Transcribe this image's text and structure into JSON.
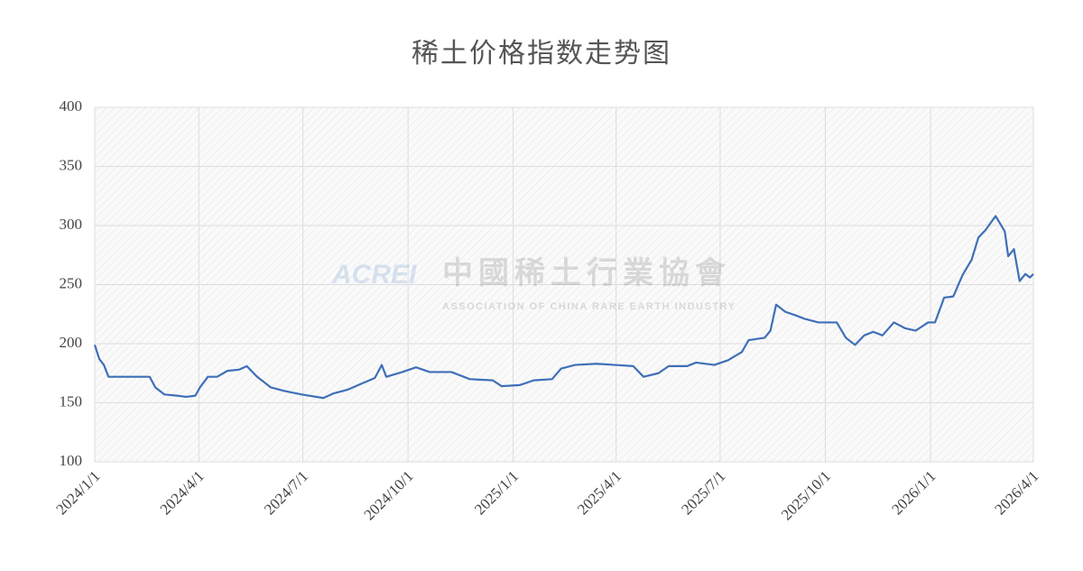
{
  "chart_data": {
    "type": "line",
    "title": "稀土价格指数走势图",
    "watermark": {
      "logo": "ACREI",
      "name": "中國稀土行業協會",
      "english": "ASSOCIATION OF CHINA RARE EARTH INDUSTRY"
    },
    "x": [
      "2024/1/1",
      "2024/1/5",
      "2024/1/9",
      "2024/1/13",
      "2024/1/21",
      "2024/2/18",
      "2024/2/23",
      "2024/3/2",
      "2024/3/13",
      "2024/3/21",
      "2024/3/29",
      "2024/4/2",
      "2024/4/9",
      "2024/4/17",
      "2024/4/26",
      "2024/5/6",
      "2024/5/13",
      "2024/5/22",
      "2024/6/3",
      "2024/6/15",
      "2024/6/30",
      "2024/7/19",
      "2024/7/28",
      "2024/8/9",
      "2024/8/21",
      "2024/9/2",
      "2024/9/8",
      "2024/9/12",
      "2024/9/26",
      "2024/10/8",
      "2024/10/20",
      "2024/11/8",
      "2024/11/24",
      "2024/12/14",
      "2024/12/22",
      "2025/1/7",
      "2025/1/19",
      "2025/2/4",
      "2025/2/12",
      "2025/2/24",
      "2025/3/15",
      "2025/3/31",
      "2025/4/16",
      "2025/4/25",
      "2025/5/8",
      "2025/5/17",
      "2025/6/2",
      "2025/6/10",
      "2025/6/26",
      "2025/7/8",
      "2025/7/20",
      "2025/7/26",
      "2025/8/9",
      "2025/8/14",
      "2025/8/19",
      "2025/8/27",
      "2025/9/5",
      "2025/9/13",
      "2025/9/25",
      "2025/10/11",
      "2025/10/19",
      "2025/10/27",
      "2025/11/4",
      "2025/11/12",
      "2025/11/20",
      "2025/11/30",
      "2025/12/10",
      "2025/12/19",
      "2025/12/30",
      "2026/1/5",
      "2026/1/13",
      "2026/1/21",
      "2026/1/29",
      "2026/2/6",
      "2026/2/12",
      "2026/2/18",
      "2026/2/27",
      "2026/3/7",
      "2026/3/10",
      "2026/3/15",
      "2026/3/20",
      "2026/3/25",
      "2026/3/29",
      "2026/4/1"
    ],
    "series": [
      {
        "color": "#3f6fb8",
        "values": [
          199,
          187,
          182,
          172,
          172,
          172,
          163,
          157,
          156,
          155,
          156,
          163,
          172,
          172,
          177,
          178,
          181,
          172,
          163,
          160,
          157,
          154,
          158,
          161,
          166,
          171,
          182,
          172,
          176,
          180,
          176,
          176,
          170,
          169,
          164,
          165,
          169,
          170,
          179,
          182,
          183,
          182,
          181,
          172,
          175,
          181,
          181,
          184,
          182,
          186,
          193,
          203,
          205,
          211,
          233,
          227,
          224,
          221,
          218,
          218,
          205,
          199,
          207,
          210,
          207,
          218,
          213,
          211,
          218,
          218,
          239,
          240,
          258,
          271,
          290,
          296,
          308,
          295,
          274,
          280,
          253,
          259,
          256,
          259
        ]
      }
    ],
    "xlim": [
      "2024/1/1",
      "2026/4/1"
    ],
    "xticks": [
      "2024/1/1",
      "2024/4/1",
      "2024/7/1",
      "2024/10/1",
      "2025/1/1",
      "2025/4/1",
      "2025/7/1",
      "2025/10/1",
      "2026/1/1",
      "2026/4/1"
    ],
    "ylim": [
      100,
      400
    ],
    "yticks": [
      100,
      150,
      200,
      250,
      300,
      350,
      400
    ],
    "grid": true
  }
}
